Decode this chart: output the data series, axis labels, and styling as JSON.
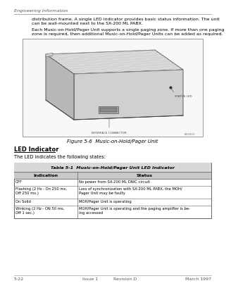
{
  "page_header": "Engineering Information",
  "body_text_1": "distribution frame. A single LED indicator provides basic status information. The unit\ncan be wall-mounted next to the SX-200 ML PABX.",
  "body_text_2": "Each Music-on-Hold/Pager Unit supports a single paging zone. If more than one paging\nzone is required, then additional Music-on-Hold/Pager Units can be added as required.",
  "figure_caption": "Figure 5-6  Music-on-Hold/Pager Unit",
  "section_heading": "LED Indicator",
  "section_body": "The LED indicates the following states:",
  "table_title": "Table 5-1  Music-on-Hold/Pager Unit LED Indicator",
  "table_col1_header": "Indication",
  "table_col2_header": "Status",
  "table_rows": [
    [
      "OFF",
      "No power from SX-200 ML DNIC circuit"
    ],
    [
      "Flashing (2 Hz - On 250 ms,\nOff 250 ms.)",
      "Loss of synchronization with SX-200 ML PABX, the MOH/\nPager Unit may be faulty"
    ],
    [
      "On Solid",
      "MOH/Pager Unit is operating"
    ],
    [
      "Winking (2 Hz - ON 50 ms,\nOff 1 sec.)",
      "MOH/Pager Unit is operating and the paging amplifier is be-\ning accessed"
    ]
  ],
  "footer_left": "5-22",
  "footer_center_1": "Issue 1",
  "footer_center_2": "Revision D",
  "footer_right": "March 1997",
  "bg_color": "#ffffff",
  "text_color": "#000000",
  "table_border_color": "#666666"
}
